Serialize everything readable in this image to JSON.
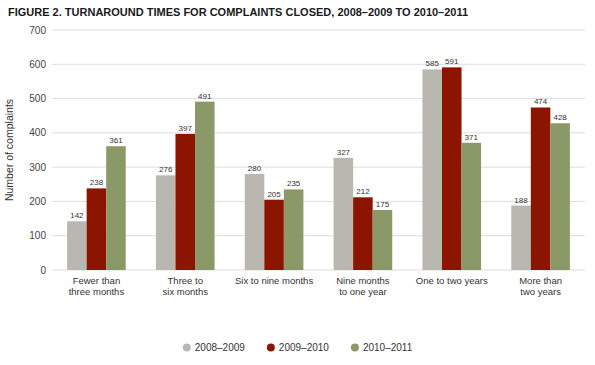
{
  "chart_data": {
    "type": "bar",
    "title": "FIGURE 2. TURNAROUND TIMES FOR COMPLAINTS CLOSED, 2008–2009 TO 2010–2011",
    "categories": [
      "Fewer than\nthree months",
      "Three to\nsix months",
      "Six to nine months",
      "Nine months\nto one year",
      "One to two years",
      "More than two years"
    ],
    "series": [
      {
        "name": "2008–2009",
        "color": "#b8b8b0",
        "values": [
          142,
          276,
          280,
          327,
          585,
          188
        ]
      },
      {
        "name": "2009–2010",
        "color": "#8b1500",
        "values": [
          238,
          397,
          205,
          212,
          591,
          474
        ]
      },
      {
        "name": "2010–2011",
        "color": "#8b9968",
        "values": [
          361,
          491,
          235,
          175,
          371,
          428
        ]
      }
    ],
    "ylabel": "Number of complaints",
    "ylim": [
      0,
      700
    ],
    "yticks": [
      0,
      100,
      200,
      300,
      400,
      500,
      600,
      700
    ],
    "grid": true,
    "data_labels": true,
    "legend": "bottom"
  }
}
